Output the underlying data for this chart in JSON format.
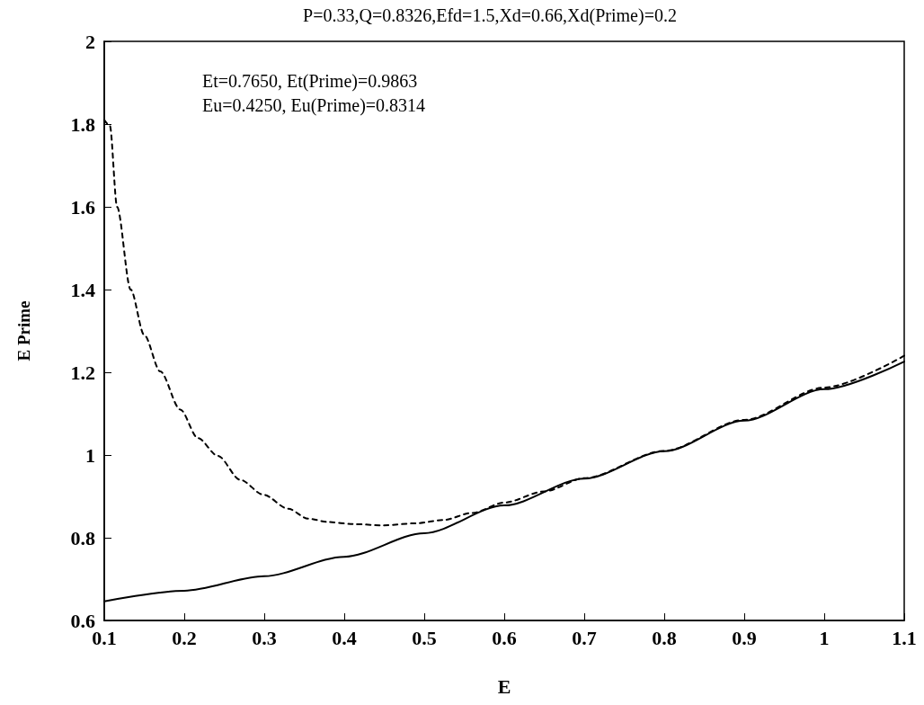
{
  "chart_data": {
    "type": "line",
    "title": "P=0.33,Q=0.8326,Efd=1.5,Xd=0.66,Xd(Prime)=0.2",
    "xlabel": "E",
    "ylabel": "E Prime",
    "annotations": [
      "Et=0.7650, Et(Prime)=0.9863",
      "Eu=0.4250, Eu(Prime)=0.8314"
    ],
    "xlim": [
      0.1,
      1.1
    ],
    "xticks": [
      0.1,
      0.2,
      0.3,
      0.4,
      0.5,
      0.6,
      0.7,
      0.8,
      0.9,
      1,
      1.1
    ],
    "ylim": [
      0.6,
      2
    ],
    "yticks": [
      0.6,
      0.8,
      1,
      1.2,
      1.4,
      1.6,
      1.8,
      2
    ],
    "grid": false,
    "marker": "none",
    "series": [
      {
        "color": "#000000",
        "line_style": "solid",
        "x": [
          0.1,
          0.2,
          0.3,
          0.4,
          0.5,
          0.6,
          0.7,
          0.8,
          0.9,
          1.0,
          1.1
        ],
        "values": [
          0.646,
          0.672,
          0.707,
          0.754,
          0.811,
          0.878,
          0.943,
          1.009,
          1.083,
          1.159,
          1.226
        ]
      },
      {
        "color": "#000000",
        "line_style": "dashed",
        "x": [
          0.1,
          0.107,
          0.116,
          0.133,
          0.15,
          0.17,
          0.195,
          0.217,
          0.242,
          0.27,
          0.299,
          0.33,
          0.355,
          0.38,
          0.411,
          0.449,
          0.49,
          0.524,
          0.56,
          0.6,
          0.65,
          0.7,
          0.8,
          0.9,
          1.0,
          1.1
        ],
        "values": [
          1.81,
          1.796,
          1.6,
          1.4,
          1.29,
          1.202,
          1.11,
          1.041,
          0.998,
          0.94,
          0.904,
          0.87,
          0.846,
          0.838,
          0.833,
          0.83,
          0.835,
          0.843,
          0.86,
          0.885,
          0.912,
          0.944,
          1.01,
          1.085,
          1.163,
          1.24
        ]
      }
    ]
  }
}
